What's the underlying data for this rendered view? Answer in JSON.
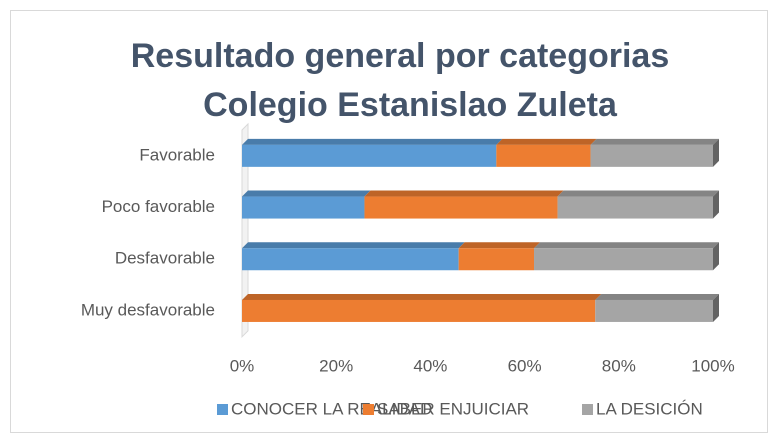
{
  "chart_data": {
    "type": "stacked-bar-horizontal",
    "title": [
      "Resultado general por categorias",
      "Colegio Estanislao Zuleta"
    ],
    "categories": [
      "Favorable",
      "Poco favorable",
      "Desfavorable",
      "Muy desfavorable"
    ],
    "series": [
      {
        "name": "CONOCER LA REALIDAD",
        "color": "#5b9bd5",
        "values": [
          54,
          26,
          46,
          0
        ]
      },
      {
        "name": "SABER ENJUICIAR",
        "color": "#ed7d31",
        "values": [
          20,
          41,
          16,
          75
        ]
      },
      {
        "name": "LA DESICIÓN",
        "color": "#a5a5a5",
        "values": [
          26,
          33,
          38,
          25
        ]
      }
    ],
    "xlim": [
      0,
      100
    ],
    "xticks": [
      {
        "value": 0,
        "label": "0%"
      },
      {
        "value": 20,
        "label": "20%"
      },
      {
        "value": 40,
        "label": "40%"
      },
      {
        "value": 60,
        "label": "60%"
      },
      {
        "value": 80,
        "label": "80%"
      },
      {
        "value": 100,
        "label": "100%"
      }
    ],
    "legend": "bottom"
  }
}
